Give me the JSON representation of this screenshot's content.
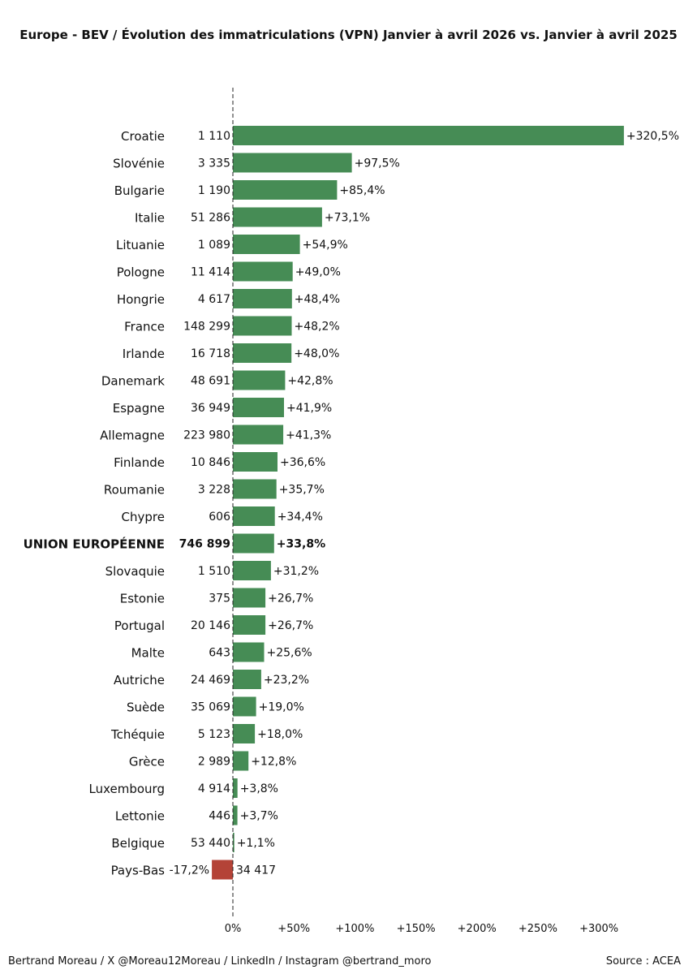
{
  "chart_data": {
    "type": "bar",
    "orientation": "horizontal",
    "title": "Europe - BEV / Évolution des immatriculations (VPN) Janvier à avril 2026 vs. Janvier à avril 2025",
    "xlim": [
      -20,
      330
    ],
    "xticks": [
      {
        "value": 0,
        "label": "0%"
      },
      {
        "value": 50,
        "label": "+50%"
      },
      {
        "value": 100,
        "label": "+100%"
      },
      {
        "value": 150,
        "label": "+150%"
      },
      {
        "value": 200,
        "label": "+200%"
      },
      {
        "value": 250,
        "label": "+250%"
      },
      {
        "value": 300,
        "label": "+300%"
      }
    ],
    "highlight_category": "UNION EUROPÉENNE",
    "colors": {
      "positive": "#468c55",
      "negative": "#b44337"
    },
    "bars": [
      {
        "category": "Croatie",
        "count": "1 110",
        "value": 320.5,
        "label": "+320,5%"
      },
      {
        "category": "Slovénie",
        "count": "3 335",
        "value": 97.5,
        "label": "+97,5%"
      },
      {
        "category": "Bulgarie",
        "count": "1 190",
        "value": 85.4,
        "label": "+85,4%"
      },
      {
        "category": "Italie",
        "count": "51 286",
        "value": 73.1,
        "label": "+73,1%"
      },
      {
        "category": "Lituanie",
        "count": "1 089",
        "value": 54.9,
        "label": "+54,9%"
      },
      {
        "category": "Pologne",
        "count": "11 414",
        "value": 49.0,
        "label": "+49,0%"
      },
      {
        "category": "Hongrie",
        "count": "4 617",
        "value": 48.4,
        "label": "+48,4%"
      },
      {
        "category": "France",
        "count": "148 299",
        "value": 48.2,
        "label": "+48,2%"
      },
      {
        "category": "Irlande",
        "count": "16 718",
        "value": 48.0,
        "label": "+48,0%"
      },
      {
        "category": "Danemark",
        "count": "48 691",
        "value": 42.8,
        "label": "+42,8%"
      },
      {
        "category": "Espagne",
        "count": "36 949",
        "value": 41.9,
        "label": "+41,9%"
      },
      {
        "category": "Allemagne",
        "count": "223 980",
        "value": 41.3,
        "label": "+41,3%"
      },
      {
        "category": "Finlande",
        "count": "10 846",
        "value": 36.6,
        "label": "+36,6%"
      },
      {
        "category": "Roumanie",
        "count": "3 228",
        "value": 35.7,
        "label": "+35,7%"
      },
      {
        "category": "Chypre",
        "count": "606",
        "value": 34.4,
        "label": "+34,4%"
      },
      {
        "category": "UNION EUROPÉENNE",
        "count": "746 899",
        "value": 33.8,
        "label": "+33,8%"
      },
      {
        "category": "Slovaquie",
        "count": "1 510",
        "value": 31.2,
        "label": "+31,2%"
      },
      {
        "category": "Estonie",
        "count": "375",
        "value": 26.7,
        "label": "+26,7%"
      },
      {
        "category": "Portugal",
        "count": "20 146",
        "value": 26.7,
        "label": "+26,7%"
      },
      {
        "category": "Malte",
        "count": "643",
        "value": 25.6,
        "label": "+25,6%"
      },
      {
        "category": "Autriche",
        "count": "24 469",
        "value": 23.2,
        "label": "+23,2%"
      },
      {
        "category": "Suède",
        "count": "35 069",
        "value": 19.0,
        "label": "+19,0%"
      },
      {
        "category": "Tchéquie",
        "count": "5 123",
        "value": 18.0,
        "label": "+18,0%"
      },
      {
        "category": "Grèce",
        "count": "2 989",
        "value": 12.8,
        "label": "+12,8%"
      },
      {
        "category": "Luxembourg",
        "count": "4 914",
        "value": 3.8,
        "label": "+3,8%"
      },
      {
        "category": "Lettonie",
        "count": "446",
        "value": 3.7,
        "label": "+3,7%"
      },
      {
        "category": "Belgique",
        "count": "53 440",
        "value": 1.1,
        "label": "+1,1%"
      },
      {
        "category": "Pays-Bas",
        "count": "34 417",
        "value": -17.2,
        "label": "-17,2%"
      }
    ]
  },
  "footer": {
    "credit": "Bertrand Moreau / X @Moreau12Moreau / LinkedIn / Instagram @bertrand_moro",
    "source": "Source : ACEA"
  }
}
